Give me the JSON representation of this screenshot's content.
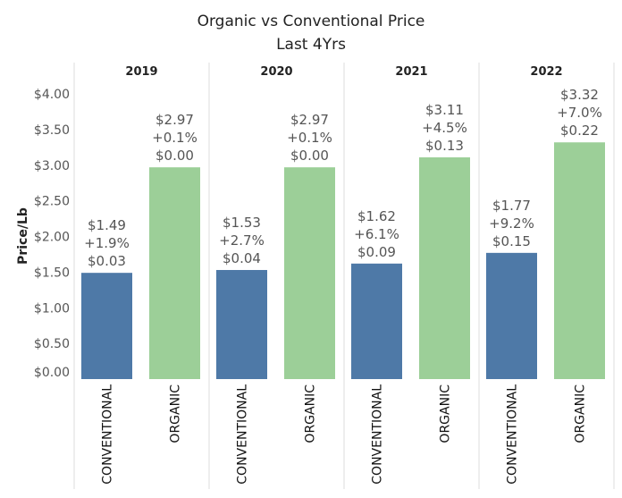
{
  "chart_data": {
    "type": "bar",
    "title": "Organic vs Conventional Price",
    "subtitle": "Last 4Yrs",
    "ylabel": "Price/Lb",
    "ylim": [
      0,
      4
    ],
    "yticks": [
      "$0.00",
      "$0.50",
      "$1.00",
      "$1.50",
      "$2.00",
      "$2.50",
      "$3.00",
      "$3.50",
      "$4.00"
    ],
    "ytick_values": [
      0,
      0.5,
      1,
      1.5,
      2,
      2.5,
      3,
      3.5,
      4
    ],
    "grid": false,
    "colors": {
      "CONVENTIONAL": "#4e79a7",
      "ORGANIC": "#9ccf98"
    },
    "panels": [
      {
        "year": "2019",
        "bars": [
          {
            "category": "CONVENTIONAL",
            "value": 1.49,
            "labels": [
              "$1.49",
              "+1.9%",
              "$0.03"
            ]
          },
          {
            "category": "ORGANIC",
            "value": 2.97,
            "labels": [
              "$2.97",
              "+0.1%",
              "$0.00"
            ]
          }
        ]
      },
      {
        "year": "2020",
        "bars": [
          {
            "category": "CONVENTIONAL",
            "value": 1.53,
            "labels": [
              "$1.53",
              "+2.7%",
              "$0.04"
            ]
          },
          {
            "category": "ORGANIC",
            "value": 2.97,
            "labels": [
              "$2.97",
              "+0.1%",
              "$0.00"
            ]
          }
        ]
      },
      {
        "year": "2021",
        "bars": [
          {
            "category": "CONVENTIONAL",
            "value": 1.62,
            "labels": [
              "$1.62",
              "+6.1%",
              "$0.09"
            ]
          },
          {
            "category": "ORGANIC",
            "value": 3.11,
            "labels": [
              "$3.11",
              "+4.5%",
              "$0.13"
            ]
          }
        ]
      },
      {
        "year": "2022",
        "bars": [
          {
            "category": "CONVENTIONAL",
            "value": 1.77,
            "labels": [
              "$1.77",
              "+9.2%",
              "$0.15"
            ]
          },
          {
            "category": "ORGANIC",
            "value": 3.32,
            "labels": [
              "$3.32",
              "+7.0%",
              "$0.22"
            ]
          }
        ]
      }
    ]
  }
}
